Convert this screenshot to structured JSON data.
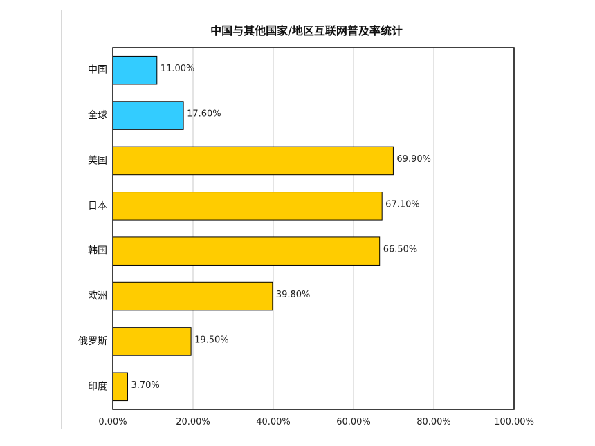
{
  "chart_data": {
    "type": "bar",
    "orientation": "horizontal",
    "title": "中国与其他国家/地区互联网普及率统计",
    "xlabel": "",
    "ylabel": "",
    "xlim": [
      0,
      100
    ],
    "grid": true,
    "legend": "none",
    "categories": [
      "中国",
      "全球",
      "美国",
      "日本",
      "韩国",
      "欧洲",
      "俄罗斯",
      "印度"
    ],
    "values": [
      11.0,
      17.6,
      69.9,
      67.1,
      66.5,
      39.8,
      19.5,
      3.7
    ],
    "value_labels": [
      "11.00%",
      "17.60%",
      "69.90%",
      "67.10%",
      "66.50%",
      "39.80%",
      "19.50%",
      "3.70%"
    ],
    "x_ticks": [
      0,
      20,
      40,
      60,
      80,
      100
    ],
    "x_tick_labels": [
      "0.00%",
      "20.00%",
      "40.00%",
      "60.00%",
      "80.00%",
      "100.00%"
    ],
    "bar_colors": [
      "#33ccff",
      "#33ccff",
      "#ffcc00",
      "#ffcc00",
      "#ffcc00",
      "#ffcc00",
      "#ffcc00",
      "#ffcc00"
    ]
  }
}
